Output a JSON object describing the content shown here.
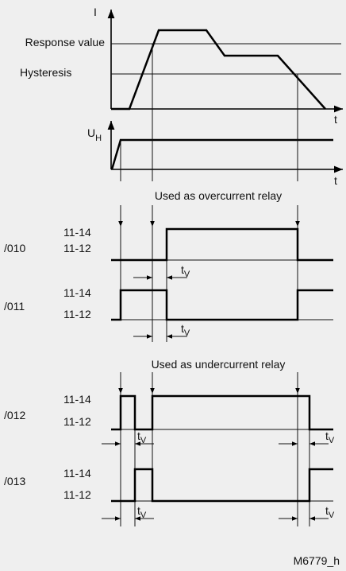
{
  "current_graph": {
    "axis_label": "I",
    "levels": [
      "Response value",
      "Hysteresis"
    ],
    "time_label": "t"
  },
  "voltage_graph": {
    "axis_label": "U",
    "axis_subscript": "H",
    "time_label": "t"
  },
  "delay": {
    "symbol": "t",
    "subscript": "V"
  },
  "sections": [
    {
      "title": "Used as overcurrent relay",
      "rows": [
        {
          "label": "/010",
          "states": [
            "11-14",
            "11-12"
          ]
        },
        {
          "label": "/011",
          "states": [
            "11-14",
            "11-12"
          ]
        }
      ]
    },
    {
      "title": "Used as undercurrent relay",
      "rows": [
        {
          "label": "/012",
          "states": [
            "11-14",
            "11-12"
          ]
        },
        {
          "label": "/013",
          "states": [
            "11-14",
            "11-12"
          ]
        }
      ]
    }
  ],
  "figure_id": "M6779_h"
}
